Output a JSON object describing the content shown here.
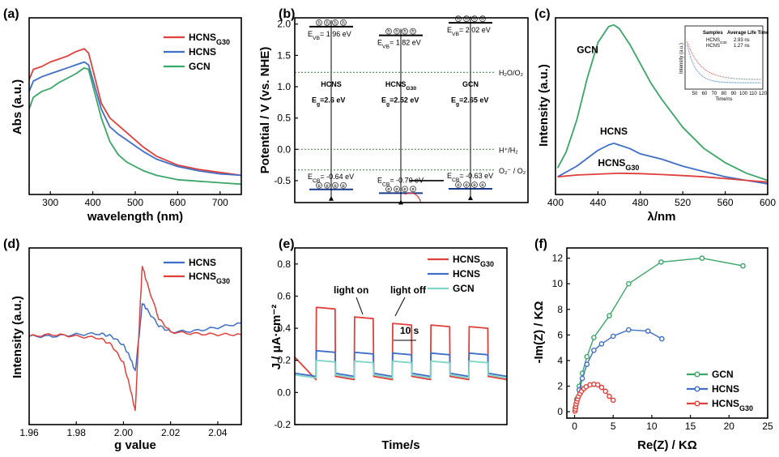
{
  "colors": {
    "red": "#e0403c",
    "blue": "#3f6fc7",
    "green": "#3aa667",
    "lightblue": "#c5e4f1",
    "orange": "#f7b26a",
    "steel": "#5b88b9"
  },
  "chart_data": [
    {
      "panel": "(a)",
      "type": "line",
      "xlabel": "wavelength (nm)",
      "ylabel": "Abs (a.u.)",
      "xlim": [
        250,
        750
      ],
      "ylim": [
        0,
        1.2
      ],
      "xticks": [
        300,
        400,
        500,
        600,
        700
      ],
      "legend": "top-right",
      "series": [
        {
          "name": "HCNS",
          "sub": "G30",
          "color": "#e0403c",
          "x": [
            250,
            260,
            280,
            300,
            320,
            340,
            360,
            380,
            390,
            400,
            420,
            440,
            460,
            480,
            500,
            520,
            550,
            600,
            650,
            700,
            750
          ],
          "y": [
            0.78,
            0.85,
            0.87,
            0.9,
            0.92,
            0.94,
            0.97,
            0.99,
            0.96,
            0.85,
            0.62,
            0.52,
            0.47,
            0.42,
            0.37,
            0.32,
            0.26,
            0.2,
            0.17,
            0.15,
            0.13
          ]
        },
        {
          "name": "HCNS",
          "sub": "",
          "color": "#3f6fc7",
          "x": [
            250,
            260,
            280,
            300,
            320,
            340,
            360,
            380,
            390,
            400,
            420,
            440,
            460,
            480,
            500,
            520,
            550,
            600,
            650,
            700,
            750
          ],
          "y": [
            0.7,
            0.77,
            0.8,
            0.82,
            0.84,
            0.86,
            0.88,
            0.9,
            0.88,
            0.78,
            0.58,
            0.46,
            0.41,
            0.37,
            0.33,
            0.29,
            0.24,
            0.19,
            0.16,
            0.14,
            0.13
          ]
        },
        {
          "name": "GCN",
          "sub": "",
          "color": "#3aa667",
          "x": [
            250,
            260,
            280,
            300,
            320,
            340,
            360,
            380,
            390,
            400,
            420,
            440,
            460,
            480,
            500,
            520,
            550,
            600,
            650,
            700,
            750
          ],
          "y": [
            0.58,
            0.66,
            0.7,
            0.72,
            0.76,
            0.79,
            0.82,
            0.86,
            0.85,
            0.74,
            0.52,
            0.36,
            0.27,
            0.22,
            0.19,
            0.16,
            0.13,
            0.1,
            0.09,
            0.08,
            0.07
          ]
        }
      ]
    },
    {
      "panel": "(b)",
      "type": "diagram",
      "ylabel": "Potential / V (vs. NHE)",
      "ylim": [
        -0.85,
        2.1
      ],
      "yticks": [
        -0.5,
        0.0,
        0.5,
        1.0,
        1.5,
        2.0
      ],
      "ytick_labels": [
        "-0.5",
        "0.0",
        "0.5",
        "1.0",
        "1.5",
        "2.0"
      ],
      "levels": [
        {
          "potential": -0.33,
          "label": "O₂⁻ / O₂"
        },
        {
          "potential": 0.0,
          "label": "H⁺/H₂"
        },
        {
          "potential": 1.23,
          "label": "H₂O/O₂"
        }
      ],
      "bands": [
        {
          "name": "HCNS",
          "sub": "",
          "cb": -0.64,
          "vb": 1.96,
          "color": "#c5e4f1",
          "cb_label": "E",
          "cb_sub": "CB",
          "cb_value": "= -0.64 eV",
          "vb_label": "E",
          "vb_sub": "VB",
          "vb_value": "= 1.96 eV",
          "vb_color": "#5bc5d6",
          "eg_value": "=2.6 eV"
        },
        {
          "name": "HCNS",
          "sub": "G30",
          "cb": -0.7,
          "vb": 1.82,
          "color": "#f7b26a",
          "cb_label": "E",
          "cb_sub": "CB",
          "cb_value": "= -0.70 eV",
          "vb_label": "E",
          "vb_sub": "VB",
          "vb_value": "= 1.82 eV",
          "vb_color": "#f0a050",
          "eg_value": "=2.52 eV"
        },
        {
          "name": "GCN",
          "sub": "",
          "cb": -0.63,
          "vb": 2.02,
          "color": "#5b88b9",
          "cb_label": "E",
          "cb_sub": "CB",
          "cb_value": "= -0.63 eV",
          "vb_label": "E",
          "vb_sub": "VB",
          "vb_value": "= 2.02 eV",
          "vb_color": "#3f6fc7",
          "eg_value": "=2.65 eV"
        }
      ],
      "eg_label": "E",
      "eg_sub": "g",
      "electron_symbol": "e",
      "hole_symbol": "h"
    },
    {
      "panel": "(c)",
      "type": "line",
      "xlabel": "λ/nm",
      "ylabel": "Intensity (a.u.)",
      "xlim": [
        400,
        600
      ],
      "ylim": [
        0,
        1.0
      ],
      "xticks": [
        400,
        440,
        480,
        520,
        560,
        600
      ],
      "series": [
        {
          "name": "GCN",
          "sub": "",
          "color": "#3aa667",
          "x": [
            402,
            410,
            420,
            430,
            440,
            450,
            455,
            460,
            470,
            480,
            490,
            500,
            520,
            540,
            560,
            580,
            600
          ],
          "y": [
            0.15,
            0.24,
            0.42,
            0.66,
            0.86,
            0.95,
            0.96,
            0.94,
            0.85,
            0.74,
            0.63,
            0.54,
            0.38,
            0.26,
            0.18,
            0.12,
            0.08
          ]
        },
        {
          "name": "HCNS",
          "sub": "",
          "color": "#3f6fc7",
          "x": [
            402,
            420,
            440,
            450,
            455,
            460,
            470,
            480,
            500,
            520,
            540,
            560,
            580,
            600
          ],
          "y": [
            0.1,
            0.16,
            0.25,
            0.28,
            0.29,
            0.28,
            0.26,
            0.23,
            0.2,
            0.16,
            0.13,
            0.1,
            0.08,
            0.06
          ]
        },
        {
          "name": "HCNS",
          "sub": "G30",
          "color": "#e0403c",
          "x": [
            402,
            420,
            440,
            460,
            480,
            500,
            520,
            540,
            560,
            580,
            600
          ],
          "y": [
            0.1,
            0.11,
            0.115,
            0.12,
            0.118,
            0.113,
            0.107,
            0.1,
            0.09,
            0.08,
            0.07
          ]
        }
      ],
      "inset": {
        "xlabel": "Time/ns",
        "ylabel": "Intensity (a.u.)",
        "xlim": [
          40,
          120
        ],
        "xticks": [
          50,
          60,
          70,
          80,
          90,
          100,
          110,
          120
        ],
        "table_headers": [
          "Samples",
          "Average Life Time"
        ],
        "rows": [
          {
            "sample": "HCNS",
            "sub": "G30",
            "value": "2.93 ns",
            "color": "#e0403c"
          },
          {
            "sample": "HCNS",
            "sub": "",
            "value": "1.27 ns",
            "color": "#3f6fc7"
          }
        ]
      }
    },
    {
      "panel": "(d)",
      "type": "line",
      "xlabel": "g value",
      "ylabel": "Intensity (a.u.)",
      "xlim": [
        1.96,
        2.05
      ],
      "ylim": [
        -1,
        1
      ],
      "xticks": [
        1.96,
        1.98,
        2.0,
        2.02,
        2.04
      ],
      "xtick_labels": [
        "1.96",
        "1.98",
        "2.00",
        "2.02",
        "2.04"
      ],
      "legend": "top-right",
      "series": [
        {
          "name": "HCNS",
          "sub": "",
          "color": "#3f6fc7",
          "x": [
            1.96,
            1.97,
            1.98,
            1.99,
            1.995,
            2.0,
            2.003,
            2.005,
            2.007,
            2.008,
            2.01,
            2.015,
            2.02,
            2.03,
            2.04,
            2.05
          ],
          "y": [
            0.0,
            0.0,
            0.02,
            0.03,
            0.0,
            -0.1,
            -0.25,
            -0.4,
            0.1,
            0.38,
            0.3,
            0.12,
            0.05,
            0.06,
            0.1,
            0.15
          ]
        },
        {
          "name": "HCNS",
          "sub": "G30",
          "color": "#e0403c",
          "x": [
            1.96,
            1.97,
            1.98,
            1.99,
            1.995,
            2.0,
            2.003,
            2.005,
            2.007,
            2.008,
            2.01,
            2.015,
            2.02,
            2.03,
            2.04,
            2.05
          ],
          "y": [
            0.0,
            0.02,
            0.0,
            -0.02,
            -0.1,
            -0.3,
            -0.6,
            -0.85,
            0.3,
            0.8,
            0.6,
            0.2,
            0.05,
            0.03,
            0.02,
            0.02
          ]
        }
      ]
    },
    {
      "panel": "(e)",
      "type": "line",
      "xlabel": "Time/s",
      "ylabel": "J / μA·cm⁻²",
      "ylim": [
        -0.2,
        0.9
      ],
      "yticks": [
        -0.2,
        0.0,
        0.2,
        0.4,
        0.6,
        0.8
      ],
      "ytick_labels": [
        "-0.2",
        "0.0",
        "0.2",
        "0.4",
        "0.6",
        "0.8"
      ],
      "legend": "top-right",
      "annotations": [
        "light on",
        "light off",
        "10 s"
      ],
      "series": [
        {
          "name": "HCNS",
          "sub": "G30",
          "color": "#e0403c",
          "off": 0.08,
          "on": [
            0.52,
            0.46,
            0.42,
            0.41,
            0.4
          ]
        },
        {
          "name": "HCNS",
          "sub": "",
          "color": "#3f6fc7",
          "off": 0.1,
          "on": [
            0.25,
            0.24,
            0.235,
            0.235,
            0.235
          ]
        },
        {
          "name": "GCN",
          "sub": "",
          "color": "#7fd6c6",
          "off": 0.09,
          "on": [
            0.19,
            0.185,
            0.185,
            0.185,
            0.185
          ]
        }
      ]
    },
    {
      "panel": "(f)",
      "type": "scatter",
      "xlabel": "Re(Z) / KΩ",
      "ylabel": "-Im(Z) / KΩ",
      "xlim": [
        -1,
        25
      ],
      "ylim": [
        -0.5,
        12.8
      ],
      "xticks": [
        0,
        5,
        10,
        15,
        20,
        25
      ],
      "yticks": [
        0,
        2,
        4,
        6,
        8,
        10,
        12
      ],
      "legend": "bottom-right",
      "series": [
        {
          "name": "GCN",
          "sub": "",
          "color": "#3aa667",
          "x": [
            0.1,
            0.3,
            0.6,
            1.0,
            1.6,
            2.5,
            4.5,
            7.0,
            11.2,
            16.5,
            21.8
          ],
          "y": [
            0.3,
            1.0,
            2.0,
            3.0,
            4.3,
            5.8,
            7.5,
            10.0,
            11.7,
            12.0,
            11.4
          ]
        },
        {
          "name": "HCNS",
          "sub": "",
          "color": "#3f6fc7",
          "x": [
            0.1,
            0.3,
            0.6,
            1.0,
            1.6,
            2.5,
            3.5,
            5.0,
            7.0,
            9.5,
            11.3
          ],
          "y": [
            0.3,
            0.9,
            1.7,
            2.6,
            3.7,
            4.8,
            5.3,
            5.9,
            6.4,
            6.3,
            5.7
          ]
        },
        {
          "name": "HCNS",
          "sub": "G30",
          "color": "#e0403c",
          "x": [
            0.05,
            0.1,
            0.15,
            0.2,
            0.3,
            0.4,
            0.5,
            0.7,
            0.9,
            1.2,
            1.5,
            2.0,
            2.5,
            3.0,
            3.5,
            4.0,
            4.5,
            5.0
          ],
          "y": [
            0.05,
            0.2,
            0.4,
            0.6,
            0.8,
            1.0,
            1.2,
            1.4,
            1.6,
            1.8,
            1.95,
            2.1,
            2.15,
            2.1,
            1.9,
            1.6,
            1.2,
            0.9
          ]
        }
      ]
    }
  ]
}
